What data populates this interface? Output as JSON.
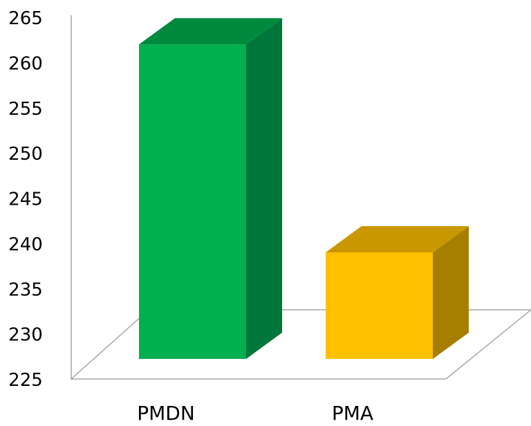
{
  "chart_data": {
    "type": "bar",
    "title": "",
    "xlabel": "",
    "ylabel": "",
    "categories": [
      "PMDN",
      "PMA"
    ],
    "values": [
      262,
      239
    ],
    "ylim": [
      225,
      265
    ],
    "yticks": [
      "225",
      "230",
      "235",
      "240",
      "245",
      "250",
      "255",
      "260",
      "265"
    ],
    "colors": {
      "bar_fronts": [
        "#00B04F",
        "#FFC000"
      ],
      "bar_tops": [
        "#008A3E",
        "#C99700"
      ],
      "bar_sides": [
        "#00773A",
        "#A67F00"
      ],
      "axis": "#A6A6A6"
    },
    "gridlines": false,
    "legend": "none",
    "style": "3d-column"
  }
}
